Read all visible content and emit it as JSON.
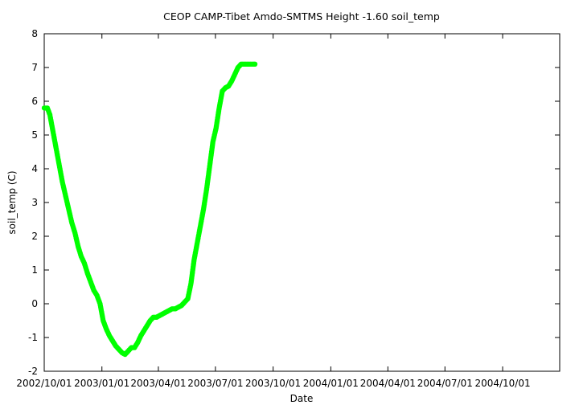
{
  "chart_data": {
    "type": "scatter",
    "title": "CEOP CAMP-Tibet Amdo-SMTMS Height -1.60 soil_temp",
    "xlabel": "Date",
    "ylabel": "soil_temp (C)",
    "xlim": [
      "2002-10-01",
      "2004-12-31"
    ],
    "ylim": [
      -2,
      8
    ],
    "yticks": [
      -2,
      -1,
      0,
      1,
      2,
      3,
      4,
      5,
      6,
      7,
      8
    ],
    "xtick_labels": [
      "2002/10/01",
      "2003/01/01",
      "2003/04/01",
      "2003/07/01",
      "2003/10/01",
      "2004/01/01",
      "2004/04/01",
      "2004/07/01",
      "2004/10/01"
    ],
    "grid": false,
    "legend": "none",
    "color": "#00ff00",
    "series": [
      {
        "x": [
          "2002-10-01",
          "2002-10-06",
          "2002-10-10",
          "2002-10-15",
          "2002-10-20",
          "2002-10-25",
          "2002-10-30",
          "2002-11-04",
          "2002-11-09",
          "2002-11-14",
          "2002-11-19",
          "2002-11-24",
          "2002-11-29",
          "2002-12-04",
          "2002-12-09",
          "2002-12-14",
          "2002-12-19",
          "2002-12-24",
          "2002-12-29",
          "2003-01-03",
          "2003-01-08",
          "2003-01-13",
          "2003-01-18",
          "2003-01-23",
          "2003-01-28",
          "2003-02-02",
          "2003-02-07",
          "2003-02-12",
          "2003-02-17",
          "2003-02-22",
          "2003-02-27",
          "2003-03-04",
          "2003-03-09",
          "2003-03-14",
          "2003-03-19",
          "2003-03-24",
          "2003-03-29",
          "2003-04-03",
          "2003-04-08",
          "2003-04-13",
          "2003-04-18",
          "2003-04-23",
          "2003-04-28",
          "2003-05-03",
          "2003-05-08",
          "2003-05-13",
          "2003-05-18",
          "2003-05-23",
          "2003-05-28",
          "2003-06-02",
          "2003-06-07",
          "2003-06-12",
          "2003-06-17",
          "2003-06-22",
          "2003-06-27",
          "2003-07-02",
          "2003-07-07",
          "2003-07-12",
          "2003-07-17",
          "2003-07-22",
          "2003-07-27",
          "2003-08-01",
          "2003-08-06",
          "2003-08-11",
          "2003-08-16",
          "2003-08-21",
          "2003-08-26",
          "2003-08-31",
          "2003-09-02"
        ],
        "y": [
          5.8,
          5.8,
          5.6,
          5.1,
          4.6,
          4.1,
          3.6,
          3.2,
          2.8,
          2.4,
          2.1,
          1.7,
          1.4,
          1.2,
          0.9,
          0.65,
          0.4,
          0.25,
          0.0,
          -0.5,
          -0.75,
          -0.95,
          -1.1,
          -1.25,
          -1.35,
          -1.45,
          -1.5,
          -1.4,
          -1.3,
          -1.3,
          -1.15,
          -0.95,
          -0.8,
          -0.65,
          -0.5,
          -0.4,
          -0.4,
          -0.35,
          -0.3,
          -0.25,
          -0.2,
          -0.15,
          -0.15,
          -0.1,
          -0.05,
          0.05,
          0.15,
          0.6,
          1.3,
          1.8,
          2.3,
          2.8,
          3.4,
          4.1,
          4.8,
          5.2,
          5.8,
          6.3,
          6.4,
          6.45,
          6.6,
          6.8,
          7.0,
          7.1,
          7.1,
          7.1,
          7.1,
          7.1,
          7.1
        ]
      }
    ]
  }
}
